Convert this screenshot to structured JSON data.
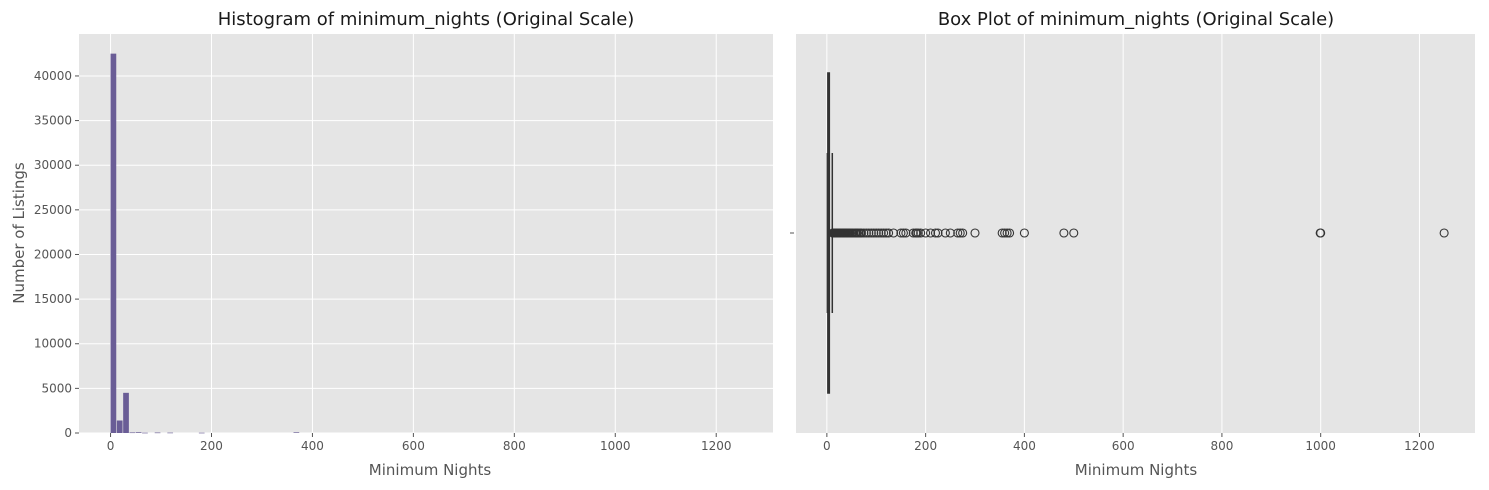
{
  "chart_data": [
    {
      "type": "bar",
      "title": "Histogram of minimum_nights (Original Scale)",
      "xlabel": "Minimum Nights",
      "ylabel": "Number of Listings",
      "xlim": [
        -62.5,
        1312.5
      ],
      "ylim": [
        0,
        44700
      ],
      "xticks": [
        0,
        200,
        400,
        600,
        800,
        1000,
        1200
      ],
      "xtick_labels": [
        "0",
        "200",
        "400",
        "600",
        "800",
        "1000",
        "1200"
      ],
      "yticks": [
        0,
        5000,
        10000,
        15000,
        20000,
        25000,
        30000,
        35000,
        40000
      ],
      "ytick_labels": [
        "0",
        "5000",
        "10000",
        "15000",
        "20000",
        "25000",
        "30000",
        "35000",
        "40000"
      ],
      "bin_width": 12.5,
      "bins": [
        {
          "x0": 0,
          "x1": 12.5,
          "count": 42500
        },
        {
          "x0": 12.5,
          "x1": 25,
          "count": 1400
        },
        {
          "x0": 25,
          "x1": 37.5,
          "count": 4500
        },
        {
          "x0": 37.5,
          "x1": 50,
          "count": 60
        },
        {
          "x0": 50,
          "x1": 62.5,
          "count": 80
        },
        {
          "x0": 62.5,
          "x1": 75,
          "count": 30
        },
        {
          "x0": 87.5,
          "x1": 100,
          "count": 50
        },
        {
          "x0": 112.5,
          "x1": 125,
          "count": 40
        },
        {
          "x0": 175,
          "x1": 187.5,
          "count": 30
        },
        {
          "x0": 362.5,
          "x1": 375,
          "count": 70
        }
      ],
      "bar_color": "#6a5d96",
      "grid": true
    },
    {
      "type": "box",
      "title": "Box Plot of minimum_nights (Original Scale)",
      "xlabel": "Minimum Nights",
      "ylabel": "",
      "xlim": [
        -62.5,
        1312.5
      ],
      "xticks": [
        0,
        200,
        400,
        600,
        800,
        1000,
        1200
      ],
      "xtick_labels": [
        "0",
        "200",
        "400",
        "600",
        "800",
        "1000",
        "1200"
      ],
      "box": {
        "whisker_low": 1,
        "q1": 2,
        "median": 3,
        "q3": 5,
        "whisker_high": 11
      },
      "outliers": [
        12,
        13,
        14,
        15,
        16,
        17,
        18,
        19,
        20,
        21,
        22,
        23,
        24,
        25,
        26,
        27,
        28,
        29,
        30,
        31,
        32,
        33,
        34,
        35,
        36,
        37,
        38,
        39,
        40,
        42,
        44,
        45,
        47,
        50,
        52,
        55,
        58,
        60,
        62,
        65,
        68,
        70,
        75,
        80,
        85,
        90,
        95,
        100,
        105,
        110,
        115,
        120,
        125,
        135,
        150,
        155,
        160,
        175,
        180,
        182,
        185,
        190,
        200,
        210,
        220,
        225,
        240,
        250,
        265,
        270,
        275,
        300,
        355,
        360,
        365,
        370,
        400,
        480,
        500,
        999,
        1000,
        1250
      ],
      "grid": true
    }
  ]
}
